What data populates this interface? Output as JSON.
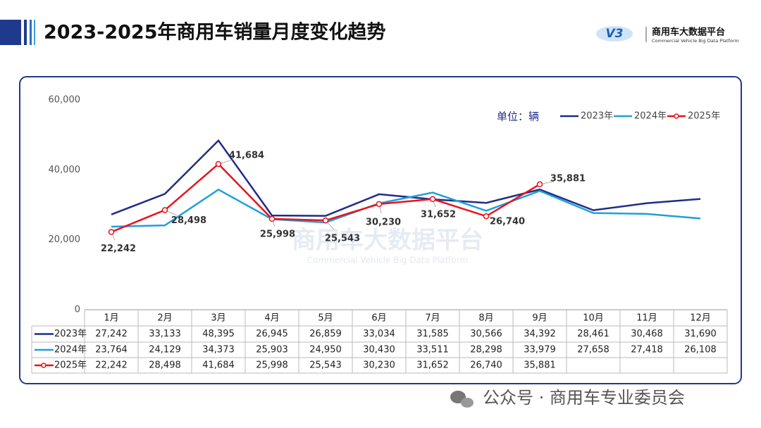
{
  "header": {
    "title": "2023-2025年商用车销量月度变化趋势",
    "logo_mark": "V3",
    "logo_name": "商用车大数据平台",
    "logo_subtitle": "Commercial Vehicle Big Data Platform"
  },
  "chart_data": {
    "type": "line",
    "unit_label": "单位：辆",
    "watermark": "商用车大数据平台",
    "watermark_subtitle": "Commercial Vehicle Big Data Platform",
    "categories": [
      "1月",
      "2月",
      "3月",
      "4月",
      "5月",
      "6月",
      "7月",
      "8月",
      "9月",
      "10月",
      "11月",
      "12月"
    ],
    "series": [
      {
        "name": "2023年",
        "color": "#1f2d86",
        "values": [
          27242,
          33133,
          48395,
          26945,
          26859,
          33034,
          31585,
          30566,
          34392,
          28461,
          30468,
          31690
        ],
        "value_labels": [
          "27,242",
          "33,133",
          "48,395",
          "26,945",
          "26,859",
          "33,034",
          "31,585",
          "30,566",
          "34,392",
          "28,461",
          "30,468",
          "31,690"
        ]
      },
      {
        "name": "2024年",
        "color": "#1fa0d8",
        "values": [
          23764,
          24129,
          34373,
          25903,
          24950,
          30430,
          33511,
          28298,
          33979,
          27658,
          27418,
          26108
        ],
        "value_labels": [
          "23,764",
          "24,129",
          "34,373",
          "25,903",
          "24,950",
          "30,430",
          "33,511",
          "28,298",
          "33,979",
          "27,658",
          "27,418",
          "26,108"
        ]
      },
      {
        "name": "2025年",
        "color": "#e8141b",
        "markers": true,
        "values": [
          22242,
          28498,
          41684,
          25998,
          25543,
          30230,
          31652,
          26740,
          35881,
          null,
          null,
          null
        ],
        "value_labels": [
          "22,242",
          "28,498",
          "41,684",
          "25,998",
          "25,543",
          "30,230",
          "31,652",
          "26,740",
          "35,881",
          null,
          null,
          null
        ]
      }
    ],
    "ylim": [
      0,
      60000
    ],
    "yticks": [
      0,
      {
        "value": 20000,
        "label": "20,000"
      },
      {
        "value": 40000,
        "label": "40,000"
      },
      {
        "value": 60000,
        "label": "60,000"
      }
    ],
    "grid": false,
    "legend": "top-right"
  },
  "footer": {
    "watermark": "公众号 · 商用车专业委员会"
  }
}
